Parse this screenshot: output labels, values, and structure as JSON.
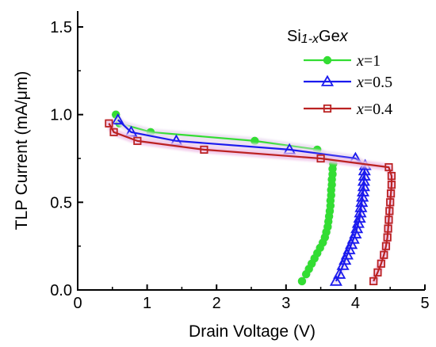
{
  "chart_data": {
    "type": "line",
    "xlabel": "Drain Voltage (V)",
    "ylabel": "TLP Current (mA/μm)",
    "xlim": [
      0,
      5
    ],
    "ylim": [
      0,
      1.6
    ],
    "xticks": [
      0,
      1,
      2,
      3,
      4,
      5
    ],
    "xtick_labels": [
      "0",
      "1",
      "2",
      "3",
      "4",
      "5"
    ],
    "yticks": [
      0.0,
      0.5,
      1.0,
      1.5
    ],
    "ytick_labels": [
      "0.0",
      "0.5",
      "1.0",
      "1.5"
    ],
    "grid": false,
    "legend_position": "top-right",
    "legend": {
      "title_parts": [
        "Si",
        "1-x",
        "Ge",
        "x"
      ],
      "entries": [
        {
          "var": "x",
          "value": "=1"
        },
        {
          "var": "x",
          "value": "=0.5"
        },
        {
          "var": "x",
          "value": "=0.4"
        }
      ]
    },
    "series": [
      {
        "marker": "circle-filled",
        "color": "#33dd33",
        "glow": "#eadcf0",
        "points": [
          [
            0.55,
            1.0
          ],
          [
            0.6,
            0.95
          ],
          [
            1.05,
            0.9
          ],
          [
            2.55,
            0.85
          ],
          [
            3.45,
            0.8
          ],
          [
            3.68,
            0.72
          ],
          [
            3.67,
            0.69
          ],
          [
            3.67,
            0.66
          ],
          [
            3.66,
            0.63
          ],
          [
            3.66,
            0.6
          ],
          [
            3.65,
            0.57
          ],
          [
            3.65,
            0.54
          ],
          [
            3.64,
            0.51
          ],
          [
            3.64,
            0.48
          ],
          [
            3.63,
            0.45
          ],
          [
            3.62,
            0.42
          ],
          [
            3.61,
            0.39
          ],
          [
            3.6,
            0.36
          ],
          [
            3.58,
            0.33
          ],
          [
            3.56,
            0.3
          ],
          [
            3.53,
            0.27
          ],
          [
            3.49,
            0.24
          ],
          [
            3.45,
            0.21
          ],
          [
            3.41,
            0.18
          ],
          [
            3.37,
            0.15
          ],
          [
            3.33,
            0.12
          ],
          [
            3.29,
            0.09
          ],
          [
            3.23,
            0.05
          ]
        ]
      },
      {
        "marker": "triangle-open",
        "color": "#1a1aee",
        "glow": "#eadcf0",
        "points": [
          [
            0.58,
            0.97
          ],
          [
            0.77,
            0.9
          ],
          [
            1.42,
            0.85
          ],
          [
            3.05,
            0.8
          ],
          [
            4.0,
            0.75
          ],
          [
            4.14,
            0.71
          ],
          [
            4.13,
            0.68
          ],
          [
            4.13,
            0.65
          ],
          [
            4.12,
            0.62
          ],
          [
            4.12,
            0.59
          ],
          [
            4.11,
            0.56
          ],
          [
            4.1,
            0.53
          ],
          [
            4.09,
            0.5
          ],
          [
            4.08,
            0.47
          ],
          [
            4.07,
            0.44
          ],
          [
            4.06,
            0.41
          ],
          [
            4.04,
            0.38
          ],
          [
            4.02,
            0.35
          ],
          [
            4.0,
            0.32
          ],
          [
            3.97,
            0.29
          ],
          [
            3.94,
            0.26
          ],
          [
            3.91,
            0.23
          ],
          [
            3.88,
            0.2
          ],
          [
            3.85,
            0.17
          ],
          [
            3.82,
            0.14
          ],
          [
            3.77,
            0.09
          ],
          [
            3.72,
            0.05
          ]
        ]
      },
      {
        "marker": "square-open",
        "color": "#bb2222",
        "glow": "#f0c4e8",
        "points": [
          [
            0.45,
            0.95
          ],
          [
            0.52,
            0.9
          ],
          [
            0.86,
            0.85
          ],
          [
            1.82,
            0.8
          ],
          [
            3.5,
            0.75
          ],
          [
            4.48,
            0.7
          ],
          [
            4.52,
            0.65
          ],
          [
            4.52,
            0.6
          ],
          [
            4.51,
            0.55
          ],
          [
            4.5,
            0.5
          ],
          [
            4.49,
            0.45
          ],
          [
            4.48,
            0.4
          ],
          [
            4.47,
            0.35
          ],
          [
            4.46,
            0.3
          ],
          [
            4.44,
            0.25
          ],
          [
            4.41,
            0.2
          ],
          [
            4.37,
            0.15
          ],
          [
            4.32,
            0.1
          ],
          [
            4.26,
            0.05
          ]
        ]
      }
    ]
  }
}
